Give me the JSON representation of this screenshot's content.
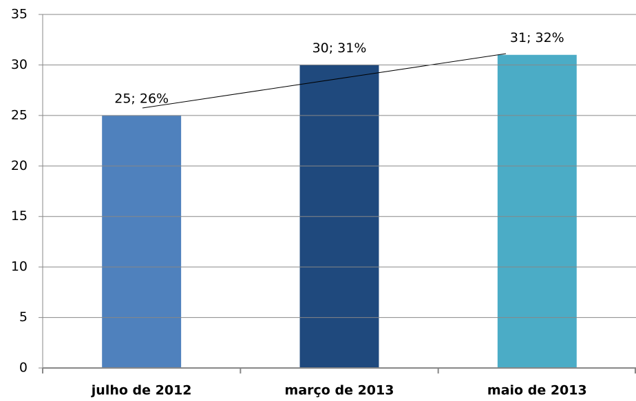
{
  "chart_data": {
    "type": "bar",
    "categories": [
      "julho de 2012",
      "março de 2013",
      "maio de 2013"
    ],
    "values": [
      25,
      30,
      31
    ],
    "value_labels": [
      "25; 26%",
      "30; 31%",
      "31; 32%"
    ],
    "colors": [
      "#4f81bd",
      "#1f497d",
      "#4bacc6"
    ],
    "ylim": [
      0,
      35
    ],
    "yticks": [
      0,
      5,
      10,
      15,
      20,
      25,
      30,
      35
    ],
    "grid": true
  }
}
